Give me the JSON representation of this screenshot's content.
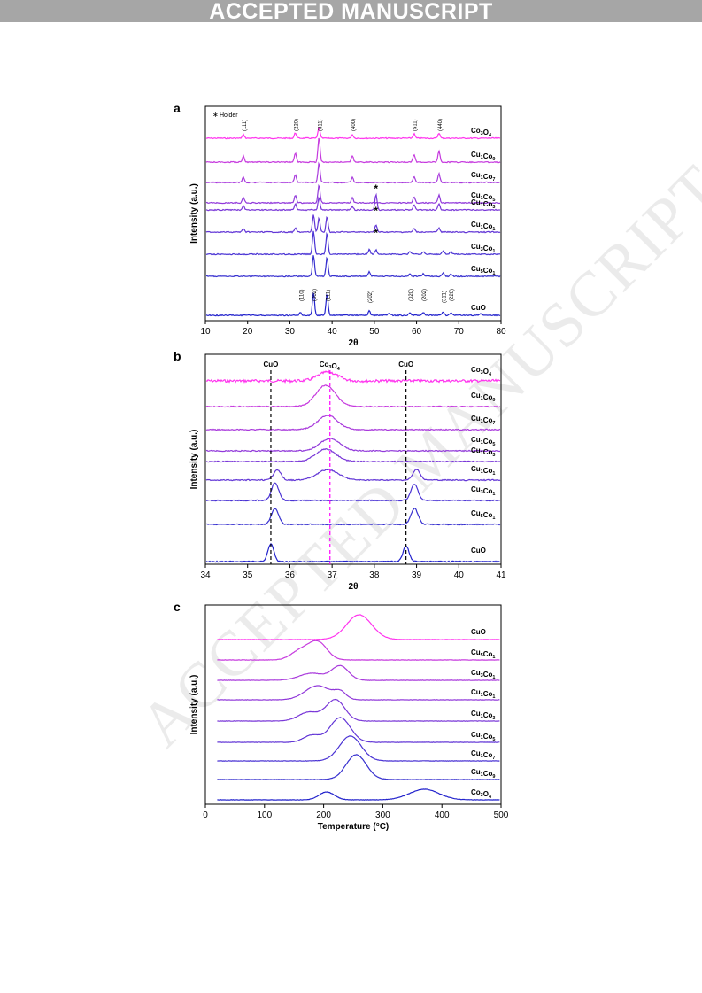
{
  "banner": "ACCEPTED MANUSCRIPT",
  "watermark": "ACCEPTED MANUSCRIPT",
  "colors": {
    "ramp": [
      "#2222cc",
      "#3730cf",
      "#4a33d4",
      "#6236d6",
      "#7a38d8",
      "#9139da",
      "#a93adc",
      "#c63ade",
      "#ff33ee"
    ],
    "axis": "#000000",
    "co3o4_line": "#ff00ff"
  },
  "chart_data": [
    {
      "panel": "a",
      "type": "line",
      "xlabel": "2θ",
      "ylabel": "Intensity (a.u.)",
      "xlim": [
        10,
        80
      ],
      "xticks": [
        10,
        20,
        30,
        40,
        50,
        60,
        70,
        80
      ],
      "legend_symbol": "∗",
      "legend_text": "Holder",
      "series": [
        {
          "name": "Co",
          "sub": "3",
          "name2": "O",
          "sub2": "4",
          "peaks": [
            [
              19,
              4
            ],
            [
              31.3,
              6
            ],
            [
              36.9,
              12
            ],
            [
              44.8,
              4
            ],
            [
              59.4,
              5
            ],
            [
              65.3,
              6
            ]
          ]
        },
        {
          "name": "Cu",
          "sub": "1",
          "name2": "Co",
          "sub2": "9",
          "peaks": [
            [
              19,
              7
            ],
            [
              31.3,
              10
            ],
            [
              36.9,
              28
            ],
            [
              44.8,
              7
            ],
            [
              59.4,
              9
            ],
            [
              65.3,
              12
            ]
          ]
        },
        {
          "name": "Cu",
          "sub": "1",
          "name2": "Co",
          "sub2": "7",
          "peaks": [
            [
              19,
              6
            ],
            [
              31.3,
              9
            ],
            [
              36.9,
              22
            ],
            [
              44.8,
              6
            ],
            [
              59.4,
              7
            ],
            [
              65.3,
              10
            ]
          ]
        },
        {
          "name": "Cu",
          "sub": "1",
          "name2": "Co",
          "sub2": "5",
          "peaks": [
            [
              19,
              6
            ],
            [
              31.3,
              9
            ],
            [
              36.9,
              20
            ],
            [
              44.8,
              6
            ],
            [
              59.4,
              7
            ],
            [
              65.3,
              9
            ]
          ]
        },
        {
          "name": "Cu",
          "sub": "1",
          "name2": "Co",
          "sub2": "3",
          "peaks": [
            [
              19,
              5
            ],
            [
              31.3,
              7
            ],
            [
              36.9,
              14
            ],
            [
              44.8,
              4
            ],
            [
              50.4,
              18
            ],
            [
              59.4,
              6
            ],
            [
              65.3,
              7
            ]
          ]
        },
        {
          "name": "Cu",
          "sub": "1",
          "name2": "Co",
          "sub2": "1",
          "peaks": [
            [
              19,
              4
            ],
            [
              31.3,
              5
            ],
            [
              35.6,
              20
            ],
            [
              36.9,
              16
            ],
            [
              38.8,
              18
            ],
            [
              50.4,
              8
            ],
            [
              59.4,
              4
            ],
            [
              65.3,
              5
            ]
          ]
        },
        {
          "name": "Cu",
          "sub": "3",
          "name2": "Co",
          "sub2": "1",
          "peaks": [
            [
              35.6,
              26
            ],
            [
              38.8,
              24
            ],
            [
              48.8,
              5
            ],
            [
              50.4,
              5
            ],
            [
              58.4,
              3
            ],
            [
              61.6,
              3
            ],
            [
              66.3,
              4
            ],
            [
              68.1,
              3
            ]
          ]
        },
        {
          "name": "Cu",
          "sub": "5",
          "name2": "Co",
          "sub2": "1",
          "peaks": [
            [
              35.6,
              24
            ],
            [
              38.8,
              22
            ],
            [
              48.8,
              5
            ],
            [
              58.4,
              3
            ],
            [
              61.6,
              3
            ],
            [
              66.3,
              4
            ],
            [
              68.1,
              3
            ]
          ]
        },
        {
          "name": "CuO",
          "sub": "",
          "name2": "",
          "sub2": "",
          "peaks": [
            [
              32.5,
              3
            ],
            [
              35.6,
              26
            ],
            [
              38.8,
              24
            ],
            [
              48.8,
              5
            ],
            [
              53.5,
              2
            ],
            [
              58.4,
              3
            ],
            [
              61.6,
              3
            ],
            [
              66.3,
              4
            ],
            [
              68.1,
              3
            ],
            [
              75.2,
              2
            ]
          ]
        }
      ],
      "hkl_top": [
        [
          19,
          "(111)"
        ],
        [
          31.3,
          "(220)"
        ],
        [
          36.9,
          "(311)"
        ],
        [
          44.8,
          "(400)"
        ],
        [
          59.4,
          "(511)"
        ],
        [
          65.3,
          "(440)"
        ]
      ],
      "hkl_bottom": [
        [
          32.5,
          "(110)"
        ],
        [
          35.6,
          "(002)"
        ],
        [
          38.8,
          "(111)"
        ],
        [
          48.8,
          "(20̄2)"
        ],
        [
          58.4,
          "(020)"
        ],
        [
          61.6,
          "(202)"
        ],
        [
          66.3,
          "(31̄1)"
        ],
        [
          68.1,
          "(220)"
        ]
      ],
      "holder_marks": [
        [
          50.4,
          4
        ],
        [
          50.4,
          5
        ],
        [
          50.4,
          6
        ]
      ]
    },
    {
      "panel": "b",
      "type": "line",
      "xlabel": "2θ",
      "ylabel": "Intensity (a.u.)",
      "xlim": [
        34,
        41
      ],
      "xticks": [
        34,
        35,
        36,
        37,
        38,
        39,
        40,
        41
      ],
      "ref_lines": [
        {
          "x": 35.55,
          "label": "CuO",
          "color": "#000000"
        },
        {
          "x": 36.95,
          "label_main": "Co",
          "label_sub": "3",
          "label_main2": "O",
          "label_sub2": "4",
          "color": "#ff00ff"
        },
        {
          "x": 38.75,
          "label": "CuO",
          "color": "#000000"
        }
      ],
      "series": [
        {
          "name": "Co",
          "sub": "3",
          "name2": "O",
          "sub2": "4",
          "peaks": [
            [
              36.9,
              10,
              0.32
            ]
          ]
        },
        {
          "name": "Cu",
          "sub": "1",
          "name2": "Co",
          "sub2": "9",
          "peaks": [
            [
              36.85,
              24,
              0.33
            ]
          ]
        },
        {
          "name": "Cu",
          "sub": "1",
          "name2": "Co",
          "sub2": "7",
          "peaks": [
            [
              36.9,
              16,
              0.33
            ]
          ]
        },
        {
          "name": "Cu",
          "sub": "1",
          "name2": "Co",
          "sub2": "5",
          "peaks": [
            [
              36.95,
              14,
              0.33
            ]
          ]
        },
        {
          "name": "Cu",
          "sub": "1",
          "name2": "Co",
          "sub2": "3",
          "peaks": [
            [
              36.85,
              14,
              0.33
            ]
          ]
        },
        {
          "name": "Cu",
          "sub": "1",
          "name2": "Co",
          "sub2": "1",
          "peaks": [
            [
              35.7,
              12,
              0.12
            ],
            [
              36.9,
              12,
              0.35
            ],
            [
              39.0,
              12,
              0.12
            ]
          ]
        },
        {
          "name": "Cu",
          "sub": "3",
          "name2": "Co",
          "sub2": "1",
          "peaks": [
            [
              35.65,
              20,
              0.12
            ],
            [
              38.95,
              18,
              0.12
            ]
          ]
        },
        {
          "name": "Cu",
          "sub": "5",
          "name2": "Co",
          "sub2": "1",
          "peaks": [
            [
              35.65,
              18,
              0.12
            ],
            [
              38.95,
              18,
              0.12
            ]
          ]
        },
        {
          "name": "CuO",
          "sub": "",
          "name2": "",
          "sub2": "",
          "peaks": [
            [
              35.55,
              20,
              0.1
            ],
            [
              38.75,
              18,
              0.1
            ]
          ]
        }
      ]
    },
    {
      "panel": "c",
      "type": "line",
      "xlabel": "Temperature (°C)",
      "ylabel": "Intensity (a.u.)",
      "xlim": [
        0,
        500
      ],
      "xticks": [
        0,
        100,
        200,
        300,
        400,
        500
      ],
      "series": [
        {
          "name": "CuO",
          "sub": "",
          "name2": "",
          "sub2": "",
          "peaks": [
            [
              260,
              28,
              30
            ]
          ]
        },
        {
          "name": "Cu",
          "sub": "5",
          "name2": "Co",
          "sub2": "1",
          "peaks": [
            [
              160,
              10,
              22
            ],
            [
              190,
              20,
              22
            ]
          ]
        },
        {
          "name": "Cu",
          "sub": "3",
          "name2": "Co",
          "sub2": "1",
          "peaks": [
            [
              180,
              8,
              30
            ],
            [
              228,
              16,
              20
            ]
          ]
        },
        {
          "name": "Cu",
          "sub": "1",
          "name2": "Co",
          "sub2": "1",
          "peaks": [
            [
              190,
              16,
              30
            ],
            [
              228,
              8,
              14
            ]
          ]
        },
        {
          "name": "Cu",
          "sub": "1",
          "name2": "Co",
          "sub2": "3",
          "peaks": [
            [
              175,
              10,
              25
            ],
            [
              220,
              24,
              22
            ]
          ]
        },
        {
          "name": "Cu",
          "sub": "1",
          "name2": "Co",
          "sub2": "5",
          "peaks": [
            [
              180,
              8,
              20
            ],
            [
              228,
              28,
              24
            ]
          ]
        },
        {
          "name": "Cu",
          "sub": "1",
          "name2": "Co",
          "sub2": "7",
          "peaks": [
            [
              245,
              28,
              26
            ]
          ]
        },
        {
          "name": "Cu",
          "sub": "1",
          "name2": "Co",
          "sub2": "9",
          "peaks": [
            [
              255,
              28,
              24
            ]
          ]
        },
        {
          "name": "Co",
          "sub": "3",
          "name2": "O",
          "sub2": "4",
          "peaks": [
            [
              205,
              9,
              18
            ],
            [
              370,
              12,
              35
            ]
          ]
        }
      ]
    }
  ]
}
